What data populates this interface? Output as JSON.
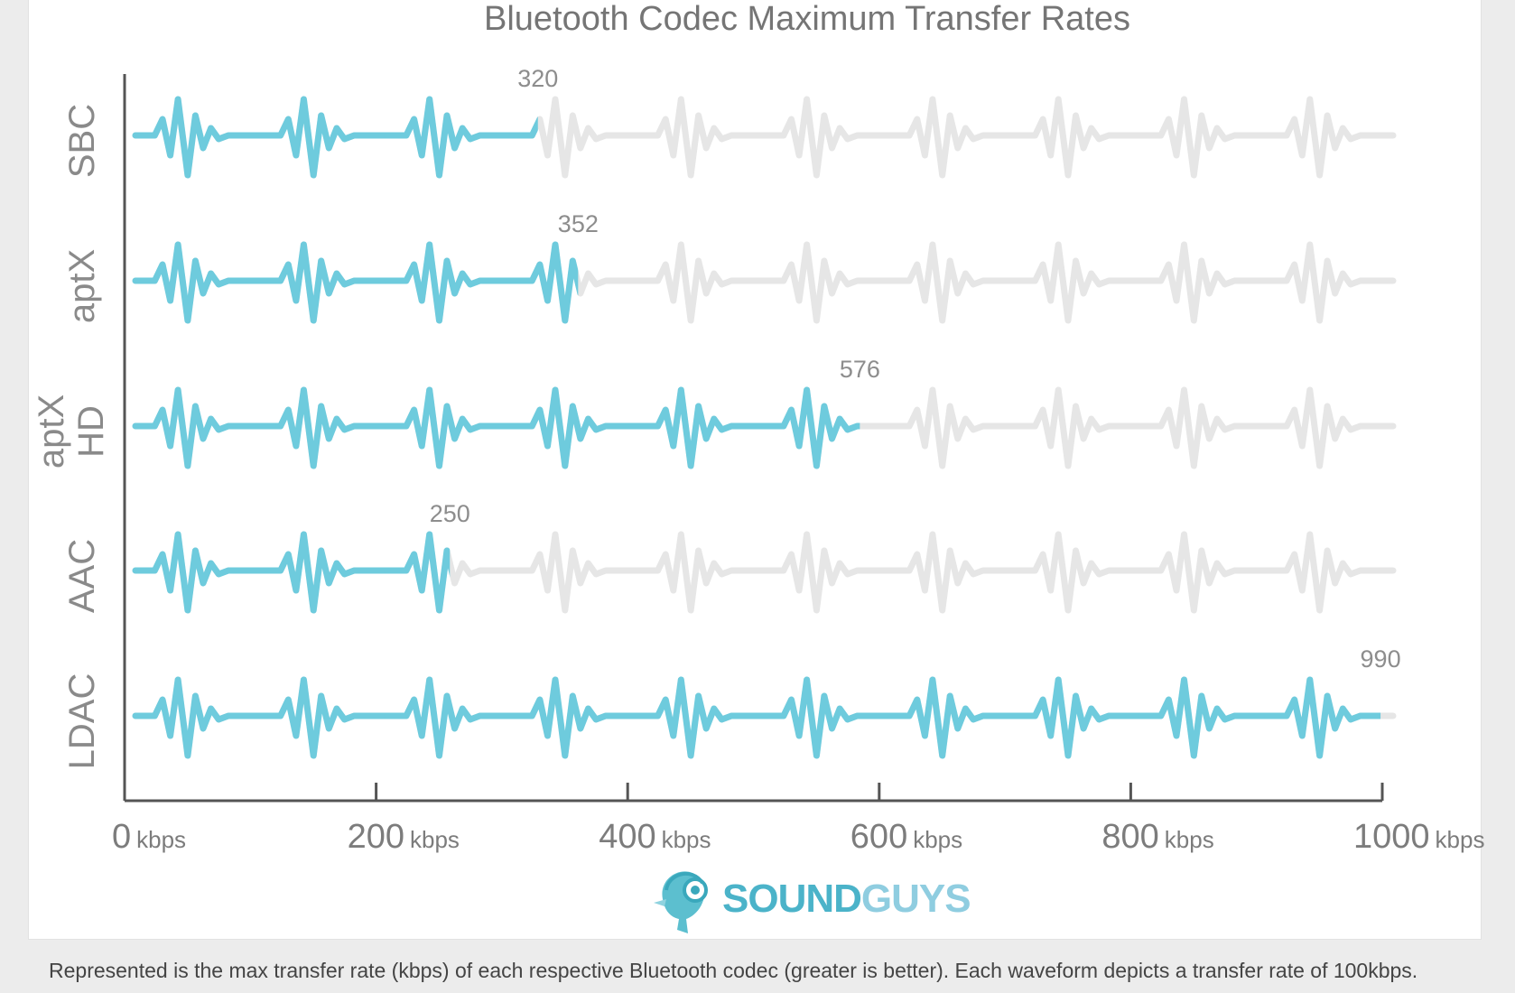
{
  "chart_data": {
    "type": "bar",
    "title": "Bluetooth Codec Maximum Transfer Rates",
    "categories": [
      "SBC",
      "aptX",
      "aptX HD",
      "AAC",
      "LDAC"
    ],
    "category_lines": [
      [
        "SBC"
      ],
      [
        "aptX"
      ],
      [
        "aptX",
        "HD"
      ],
      [
        "AAC"
      ],
      [
        "LDAC"
      ]
    ],
    "values": [
      320,
      352,
      576,
      250,
      990
    ],
    "value_labels": [
      "320",
      "352",
      "576",
      "250",
      "990"
    ],
    "xlim": [
      0,
      1000
    ],
    "xticks": [
      0,
      200,
      400,
      600,
      800,
      1000
    ],
    "xtick_labels": [
      {
        "num": "0",
        "unit": "kbps"
      },
      {
        "num": "200",
        "unit": "kbps"
      },
      {
        "num": "400",
        "unit": "kbps"
      },
      {
        "num": "600",
        "unit": "kbps"
      },
      {
        "num": "800",
        "unit": "kbps"
      },
      {
        "num": "1000",
        "unit": "kbps"
      }
    ],
    "unit_per_waveform": 100,
    "colors": {
      "filled": "#6ecbdd",
      "empty": "#e6e6e6",
      "axis": "#555555"
    },
    "grid": false,
    "legend": "none"
  },
  "logo": {
    "part1": "SOUND",
    "part2": "GUYS"
  },
  "caption": "Represented is the max transfer rate (kbps) of each respective Bluetooth codec (greater is better). Each waveform depicts a transfer rate of 100kbps."
}
